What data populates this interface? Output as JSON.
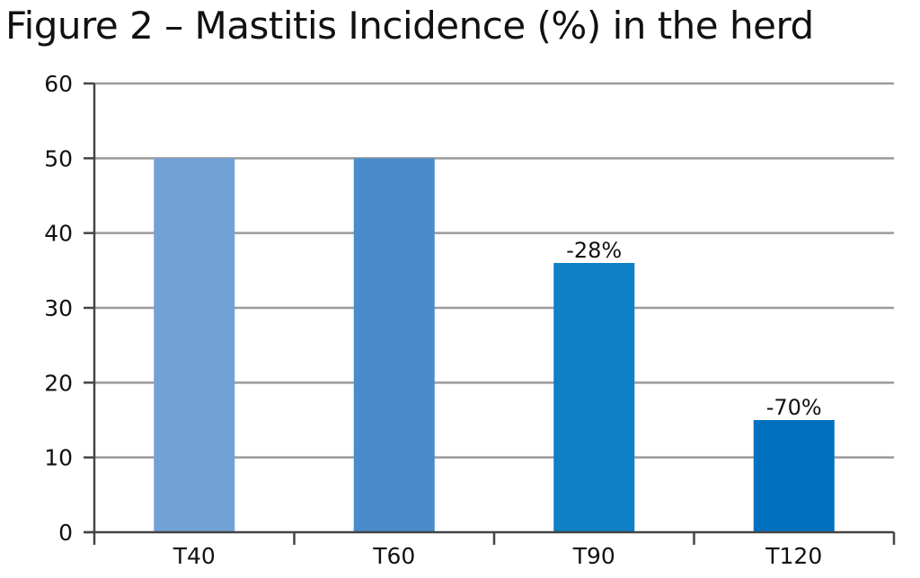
{
  "chart_data": {
    "type": "bar",
    "title": "Figure 2 – Mastitis Incidence (%) in the herd",
    "categories": [
      "T40",
      "T60",
      "T90",
      "T120"
    ],
    "values": [
      50,
      50,
      36,
      15
    ],
    "data_labels": [
      "",
      "",
      "-28%",
      "-70%"
    ],
    "bar_colors": [
      "#72a2d5",
      "#4a8ccb",
      "#0f7fc6",
      "#0070bf"
    ],
    "ylim": [
      0,
      60
    ],
    "yticks": [
      0,
      10,
      20,
      30,
      40,
      50,
      60
    ],
    "grid": true,
    "gridline_color": "#9a9a9a",
    "axis_color": "#444444",
    "xlabel": "",
    "ylabel": ""
  }
}
